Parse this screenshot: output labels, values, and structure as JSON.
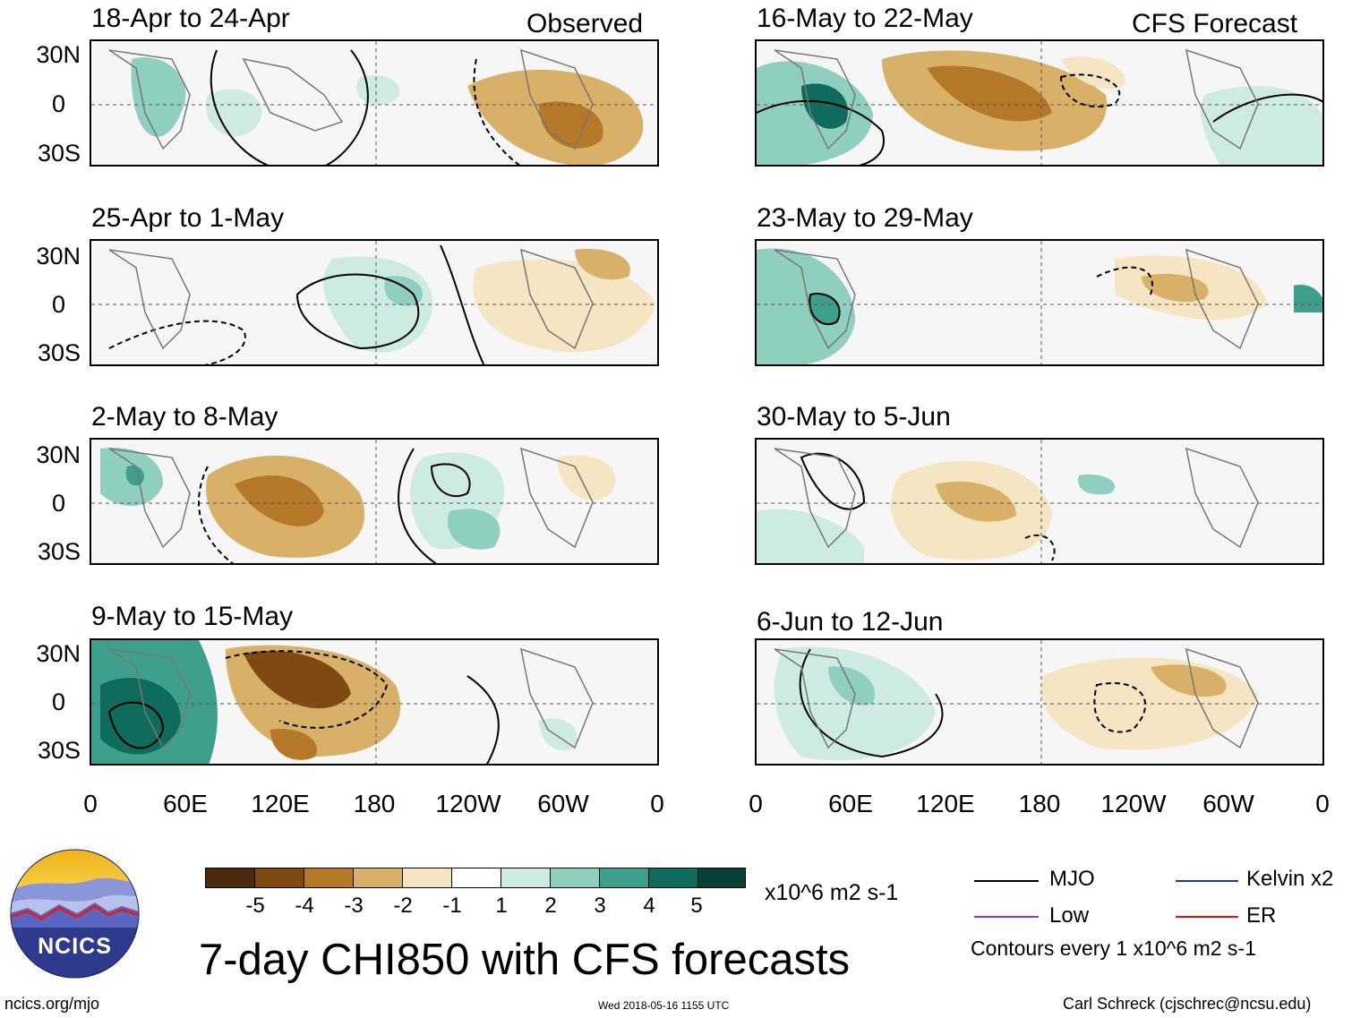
{
  "panel_titles": {
    "obs1": "18-Apr to 24-Apr",
    "obs2": "25-Apr to 1-May",
    "obs3": "2-May to 8-May",
    "obs4": "9-May to 15-May",
    "fc1": "16-May to 22-May",
    "fc2": "23-May to 29-May",
    "fc3": "30-May to 5-Jun",
    "fc4": "6-Jun to 12-Jun"
  },
  "column_labels": {
    "observed": "Observed",
    "forecast": "CFS Forecast"
  },
  "lat_labels": [
    "30N",
    "0",
    "30S"
  ],
  "lon_labels": [
    "0",
    "60E",
    "120E",
    "180",
    "120W",
    "60W",
    "0"
  ],
  "colorbar": {
    "labels": [
      "-5",
      "-4",
      "-3",
      "-2",
      "-1",
      "1",
      "2",
      "3",
      "4",
      "5"
    ],
    "colors": [
      "#4a2b0c",
      "#7f4a12",
      "#b57728",
      "#d8b068",
      "#f5e5c3",
      "#ffffff",
      "#cdebe3",
      "#8fcfc0",
      "#3f9f8d",
      "#0f6b5c",
      "#083f36"
    ],
    "units": "x10^6 m2 s-1"
  },
  "title": "7-day CHI850 with CFS forecasts",
  "logo": {
    "text": "NCICS"
  },
  "legend": {
    "mjo": "MJO",
    "kelvin": "Kelvin x2",
    "low": "Low",
    "er": "ER",
    "contours_note": "Contours every 1 x10^6 m2 s-1",
    "colors": {
      "mjo": "#000000",
      "kelvin": "#2233cc",
      "low": "#9933cc",
      "er": "#dd1111"
    }
  },
  "footer": {
    "left": "ncics.org/mjo",
    "center": "Wed 2018-05-16 1155 UTC",
    "right": "Carl Schreck (cjschrec@ncsu.edu)"
  }
}
